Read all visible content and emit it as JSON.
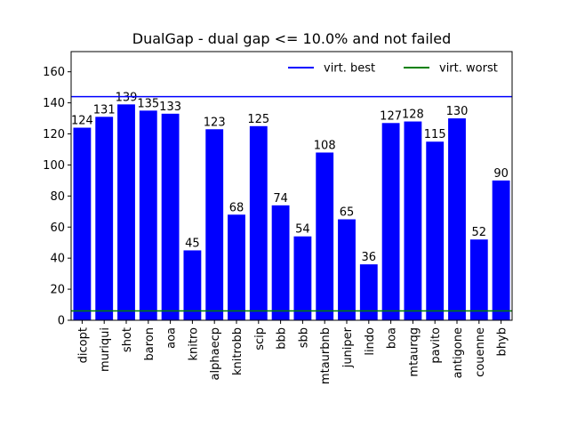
{
  "chart_data": {
    "type": "bar",
    "title": "DualGap - dual gap <= 10.0% and not failed",
    "xlabel": "",
    "ylabel": "",
    "categories": [
      "dicopt",
      "muriqui",
      "shot",
      "baron",
      "aoa",
      "knitro",
      "alphaecp",
      "knitrobb",
      "scip",
      "bbb",
      "sbb",
      "mtaurbnb",
      "juniper",
      "lindo",
      "boa",
      "mtaurqg",
      "pavito",
      "antigone",
      "couenne",
      "bhyb"
    ],
    "values": [
      124,
      131,
      139,
      135,
      133,
      45,
      123,
      68,
      125,
      74,
      54,
      108,
      65,
      36,
      127,
      128,
      115,
      130,
      52,
      90
    ],
    "ylim": [
      0,
      173
    ],
    "yticks": [
      0,
      20,
      40,
      60,
      80,
      100,
      120,
      140,
      160
    ],
    "bar_color": "#0000ff",
    "grid": false,
    "legend_position": "top-right",
    "reference_lines": [
      {
        "name": "virt. best",
        "value": 144,
        "color": "#0000ff"
      },
      {
        "name": "virt. worst",
        "value": 6,
        "color": "#008000"
      }
    ]
  }
}
